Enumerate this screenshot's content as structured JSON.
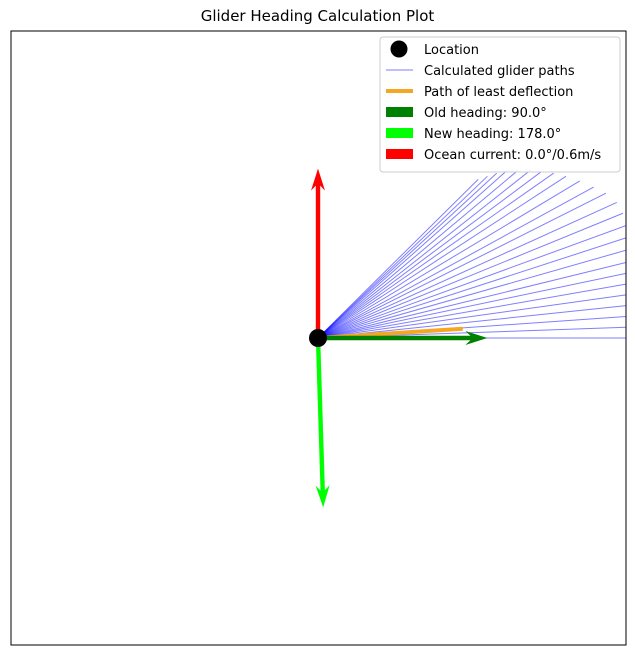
{
  "chart_data": {
    "type": "vector-plot",
    "title": "Glider Heading Calculation Plot",
    "xlabel": "",
    "ylabel": "",
    "grid": false,
    "axis_ticks": false,
    "legend_position": "top-right",
    "location": {
      "x": 0,
      "y": 0
    },
    "glider_paths": {
      "name": "Calculated glider paths",
      "color": "#0000ff",
      "endpoints": [
        [
          1.0,
          0.0
        ],
        [
          1.0,
          0.035
        ],
        [
          1.0,
          0.07
        ],
        [
          1.0,
          0.105
        ],
        [
          1.0,
          0.14
        ],
        [
          1.0,
          0.175
        ],
        [
          1.0,
          0.21
        ],
        [
          1.0,
          0.245
        ],
        [
          1.0,
          0.285
        ],
        [
          1.0,
          0.325
        ],
        [
          1.0,
          0.365
        ],
        [
          0.99,
          0.405
        ],
        [
          0.97,
          0.44
        ],
        [
          0.935,
          0.47
        ],
        [
          0.895,
          0.49
        ],
        [
          0.85,
          0.51
        ],
        [
          0.805,
          0.525
        ],
        [
          0.765,
          0.535
        ],
        [
          0.725,
          0.54
        ],
        [
          0.69,
          0.545
        ],
        [
          0.65,
          0.545
        ],
        [
          0.615,
          0.545
        ],
        [
          0.58,
          0.535
        ],
        [
          0.55,
          0.525
        ],
        [
          0.52,
          0.515
        ]
      ]
    },
    "least_deflection_path": {
      "name": "Path of least deflection",
      "color": "#f5a623",
      "end": [
        0.47,
        0.03
      ]
    },
    "old_heading": {
      "label": "Old heading: 90.0°",
      "color": "#008000",
      "vector": [
        0.55,
        0.0
      ]
    },
    "new_heading": {
      "label": "New heading: 178.0°",
      "color": "#00ff00",
      "vector": [
        0.017,
        -0.55
      ]
    },
    "ocean_current": {
      "label": "Ocean current: 0.0°/0.6m/s",
      "color": "#ff0000",
      "vector": [
        0.0,
        0.55
      ]
    },
    "legend": [
      {
        "marker": "dot",
        "color": "#000000",
        "label": "Location"
      },
      {
        "marker": "thin-line",
        "color": "#7b7bff",
        "label": "Calculated glider paths"
      },
      {
        "marker": "thick-line",
        "color": "#f5a623",
        "label": "Path of least deflection"
      },
      {
        "marker": "patch",
        "color": "#008000",
        "label": "Old heading: 90.0°"
      },
      {
        "marker": "patch",
        "color": "#00ff00",
        "label": "New heading: 178.0°"
      },
      {
        "marker": "patch",
        "color": "#ff0000",
        "label": "Ocean current: 0.0°/0.6m/s"
      }
    ]
  }
}
